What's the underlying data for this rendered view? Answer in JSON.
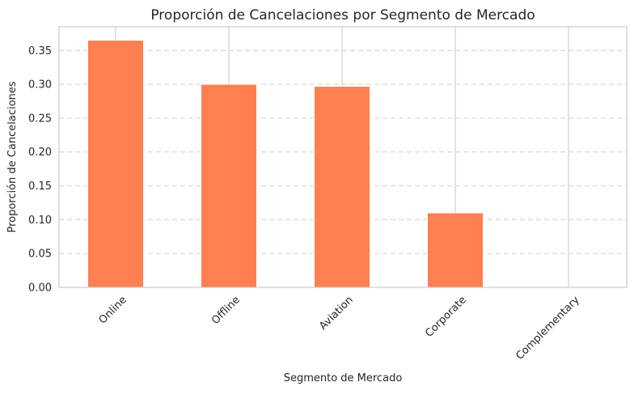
{
  "chart_data": {
    "type": "bar",
    "title": "Proporción de Cancelaciones por Segmento de Mercado",
    "xlabel": "Segmento de Mercado",
    "ylabel": "Proporción de Cancelaciones",
    "categories": [
      "Online",
      "Offline",
      "Aviation",
      "Corporate",
      "Complementary"
    ],
    "values": [
      0.365,
      0.3,
      0.297,
      0.11,
      0.0
    ],
    "ylim": [
      0,
      0.385
    ],
    "yticks": [
      0.0,
      0.05,
      0.1,
      0.15,
      0.2,
      0.25,
      0.3,
      0.35
    ],
    "ytick_labels": [
      "0.00",
      "0.05",
      "0.10",
      "0.15",
      "0.20",
      "0.25",
      "0.30",
      "0.35"
    ],
    "bar_color": "#ff7f50",
    "grid": {
      "y": "dashed",
      "x": "solid"
    },
    "legend": "none"
  }
}
